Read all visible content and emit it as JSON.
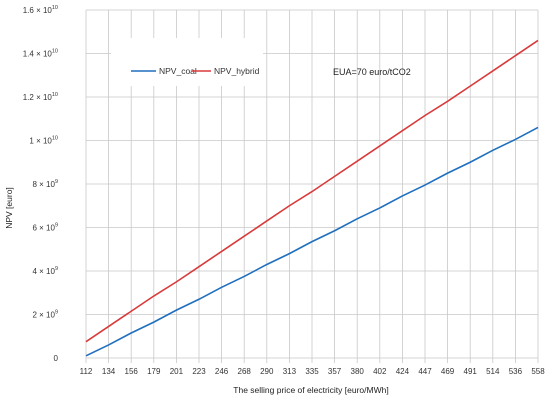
{
  "chart_data": {
    "type": "line",
    "xlabel": "The selling price of electricity [euro/MWh]",
    "ylabel": "NPV [euro]",
    "x": [
      112,
      134,
      156,
      179,
      201,
      223,
      246,
      268,
      290,
      313,
      335,
      357,
      380,
      402,
      424,
      447,
      469,
      491,
      514,
      536,
      558
    ],
    "x_tick_labels": [
      "112",
      "134",
      "156",
      "179",
      "201",
      "223",
      "246",
      "268",
      "290",
      "313",
      "335",
      "357",
      "380",
      "402",
      "424",
      "447",
      "469",
      "491",
      "514",
      "536",
      "558"
    ],
    "ylim": [
      0,
      16000000000
    ],
    "y_ticks": [
      {
        "value": 0,
        "base": "0",
        "exp": ""
      },
      {
        "value": 2000000000,
        "base": "2 × 10",
        "exp": "9"
      },
      {
        "value": 4000000000,
        "base": "4 × 10",
        "exp": "9"
      },
      {
        "value": 6000000000,
        "base": "6 × 10",
        "exp": "9"
      },
      {
        "value": 8000000000,
        "base": "8 × 10",
        "exp": "9"
      },
      {
        "value": 10000000000,
        "base": "1 × 10",
        "exp": "10"
      },
      {
        "value": 12000000000,
        "base": "1.2 × 10",
        "exp": "10"
      },
      {
        "value": 14000000000,
        "base": "1.4 × 10",
        "exp": "10"
      },
      {
        "value": 16000000000,
        "base": "1.6 × 10",
        "exp": "10"
      }
    ],
    "series": [
      {
        "name": "NPV_coal",
        "color": "#1f6fbf",
        "values": [
          100000000,
          600000000,
          1150000000,
          1650000000,
          2200000000,
          2700000000,
          3250000000,
          3750000000,
          4300000000,
          4800000000,
          5350000000,
          5850000000,
          6400000000,
          6900000000,
          7450000000,
          7950000000,
          8500000000,
          9000000000,
          9550000000,
          10050000000,
          10600000000
        ]
      },
      {
        "name": "NPV_hybrid",
        "color": "#d93a3a",
        "values": [
          750000000,
          1450000000,
          2150000000,
          2850000000,
          3500000000,
          4200000000,
          4900000000,
          5600000000,
          6300000000,
          7000000000,
          7650000000,
          8350000000,
          9050000000,
          9750000000,
          10450000000,
          11150000000,
          11800000000,
          12500000000,
          13200000000,
          13900000000,
          14600000000
        ]
      }
    ],
    "annotation": "EUA=70 euro/tCO2",
    "grid": true,
    "legend_position": "top-left"
  }
}
